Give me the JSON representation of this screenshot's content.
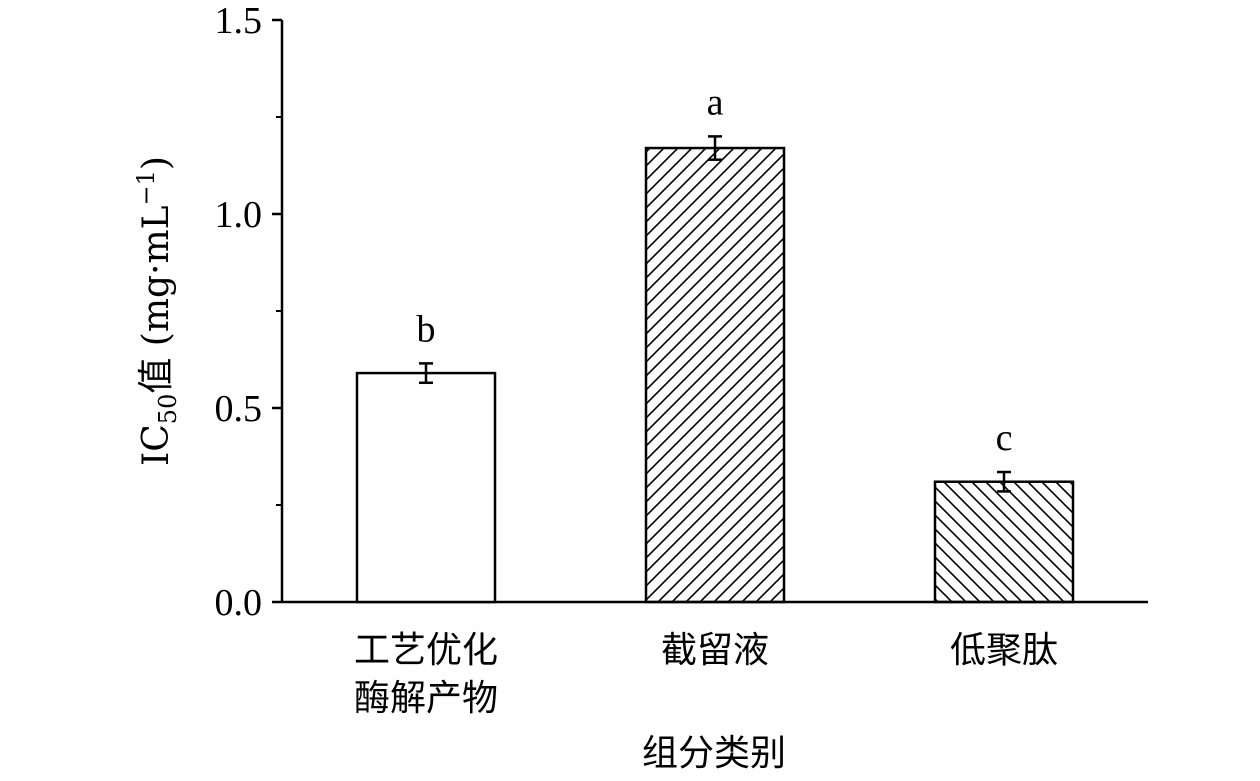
{
  "chart_data": {
    "type": "bar",
    "categories": [
      [
        "工艺优化",
        "酶解产物"
      ],
      [
        "截留液"
      ],
      [
        "低聚肽"
      ]
    ],
    "values": [
      0.59,
      1.17,
      0.31
    ],
    "errors": [
      0.025,
      0.03,
      0.025
    ],
    "significance": [
      "b",
      "a",
      "c"
    ],
    "patterns": [
      "none",
      "hatch-forward",
      "hatch-backward"
    ],
    "xlabel": "组分类别",
    "ylabel": {
      "prefix": "IC",
      "subscript": "50",
      "mid": "值 (mg·mL",
      "superscript": "−1",
      "suffix": ")"
    },
    "ylim": [
      0,
      1.5
    ],
    "yticks": [
      "0.0",
      "0.5",
      "1.0",
      "1.5"
    ],
    "ytick_values": [
      0,
      0.5,
      1.0,
      1.5
    ],
    "minor_yticks": [
      0.25,
      0.75,
      1.25
    ],
    "grid": false,
    "legend": "none",
    "colors": {
      "bar_fill": "#ffffff",
      "bar_stroke": "#000000"
    }
  }
}
